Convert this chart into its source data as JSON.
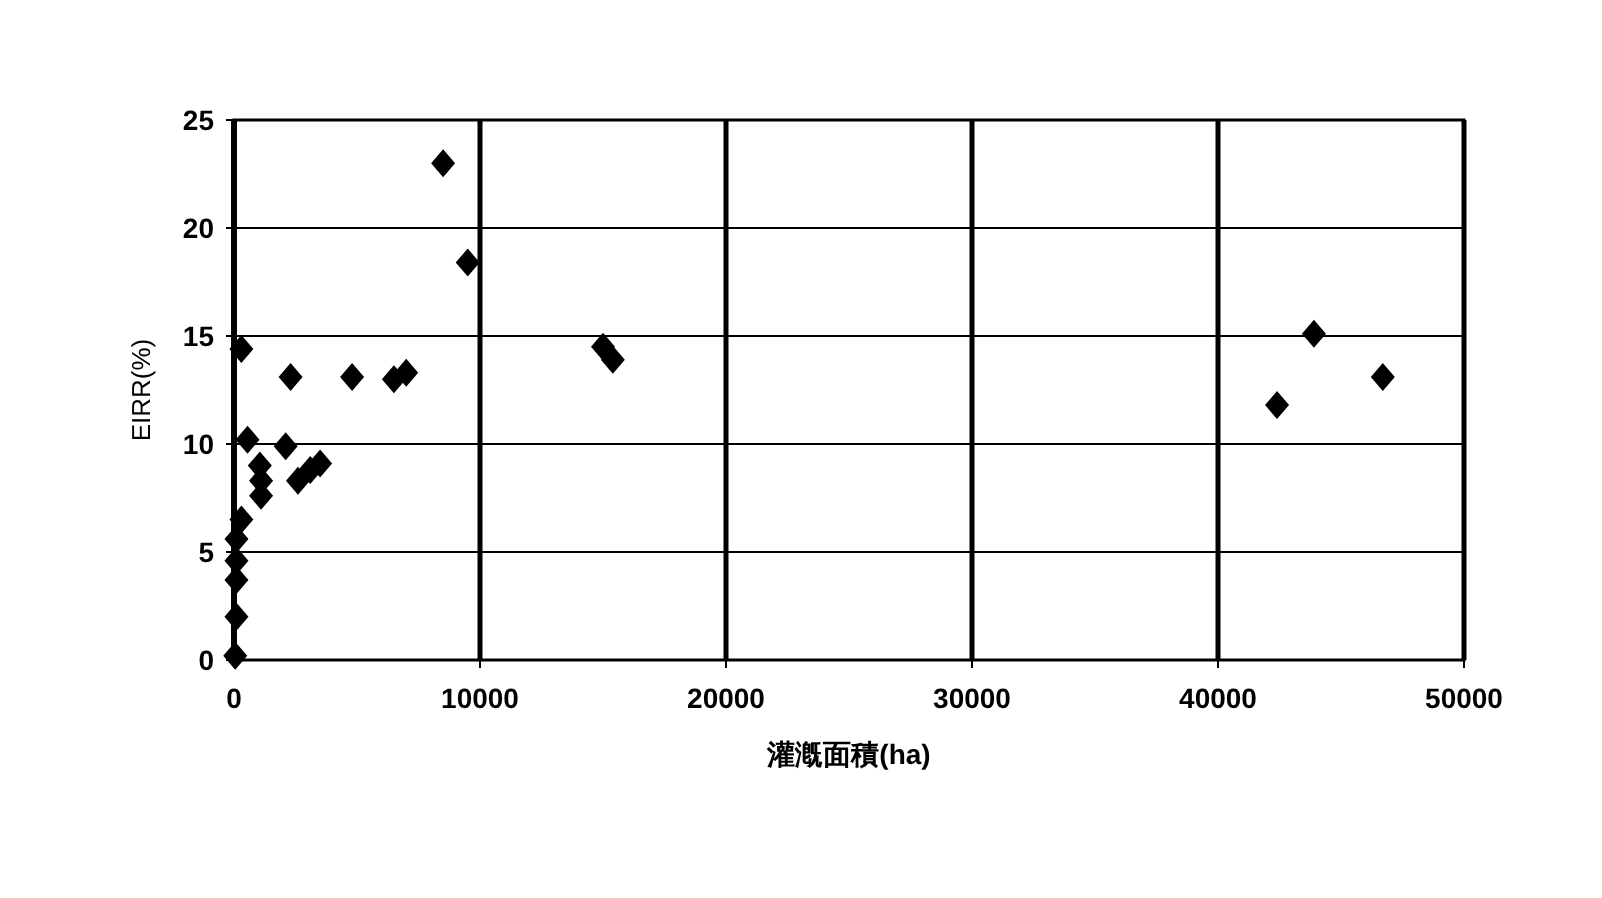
{
  "chart_data": {
    "type": "scatter",
    "xlabel": "灌漑面積(ha)",
    "ylabel": "EIRR(%)",
    "x": [
      50,
      100,
      100,
      100,
      100,
      300,
      300,
      550,
      1050,
      1100,
      1100,
      2100,
      2300,
      2600,
      3100,
      3500,
      4800,
      6500,
      7000,
      8500,
      9500,
      15000,
      15400,
      43900,
      42400,
      46700
    ],
    "series": [
      {
        "color": "#000000",
        "values": [
          0.2,
          2,
          3.7,
          4.6,
          5.6,
          6.5,
          14.4,
          10.2,
          9,
          8.3,
          7.6,
          9.9,
          13.1,
          8.3,
          8.8,
          9.1,
          13.1,
          13,
          13.3,
          23,
          18.4,
          14.5,
          13.9,
          15.1,
          11.8,
          13.1
        ]
      }
    ],
    "xlim": [
      0,
      50000
    ],
    "xticks": [
      0,
      10000,
      20000,
      30000,
      40000,
      50000
    ],
    "ylim": [
      0,
      25
    ],
    "yticks": [
      0,
      5,
      10,
      15,
      20,
      25
    ],
    "grid": true,
    "marker": "diamond"
  }
}
